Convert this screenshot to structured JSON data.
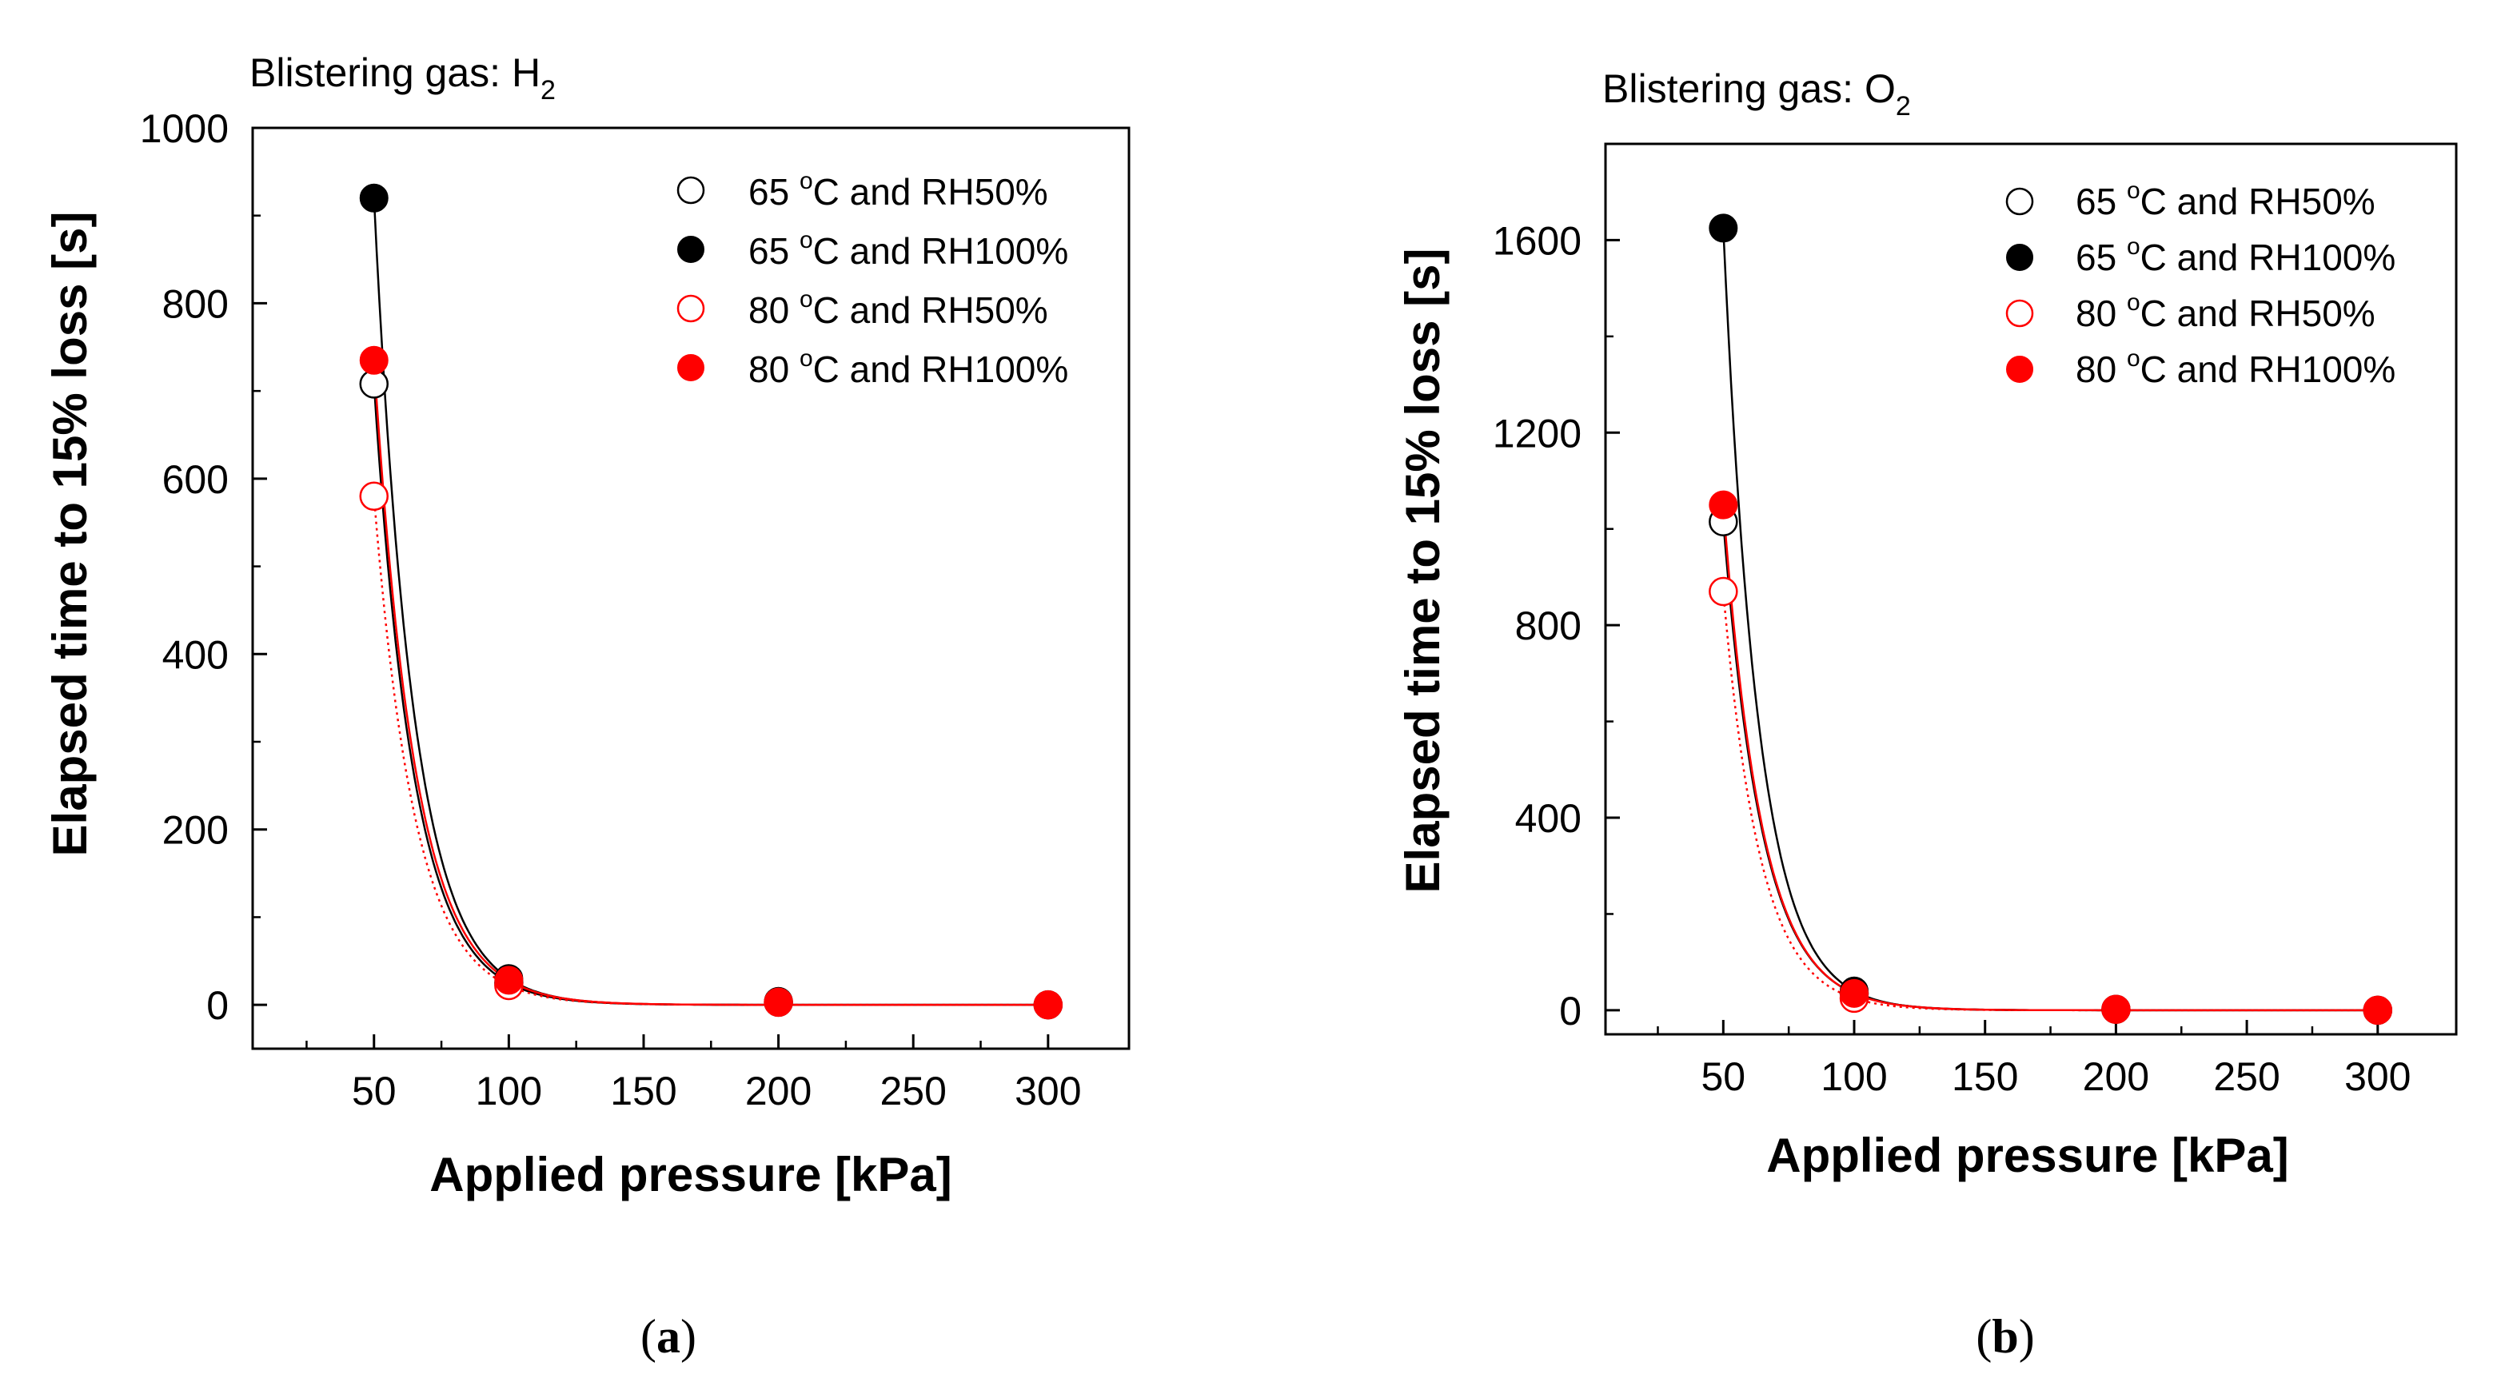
{
  "charts": [
    {
      "type": "scatter",
      "title_prefix": "Blistering gas: ",
      "gas_symbol": "H",
      "gas_subscript": "2",
      "xlabel": "Applied pressure [kPa]",
      "ylabel": "Elapsed time to 15% loss [s]",
      "xlim": [
        5,
        330
      ],
      "ylim": [
        -50,
        1000
      ],
      "xticks": [
        50,
        100,
        150,
        200,
        250,
        300
      ],
      "xtick_labels": [
        "50",
        "100",
        "150",
        "200",
        "250",
        "300"
      ],
      "xminor": [
        25,
        75,
        125,
        175,
        225,
        275
      ],
      "yticks": [
        0,
        200,
        400,
        600,
        800,
        1000
      ],
      "ytick_labels": [
        "0",
        "200",
        "400",
        "600",
        "800",
        "1000"
      ],
      "yminor": [
        100,
        300,
        500,
        700,
        900
      ],
      "caption": "(a)",
      "caption_letter": "a",
      "series": [
        {
          "name": "65 °C and RH50%",
          "legend_prefix": "65 ",
          "legend_deg": "o",
          "legend_suffix": "C and RH50%",
          "color": "#000000",
          "filled": false,
          "line": "solid",
          "x": [
            50,
            100,
            200,
            300
          ],
          "values": [
            708,
            25,
            3,
            0
          ]
        },
        {
          "name": "65 °C and RH100%",
          "legend_prefix": "65 ",
          "legend_deg": "o",
          "legend_suffix": "C and RH100%",
          "color": "#000000",
          "filled": true,
          "line": "solid",
          "x": [
            50,
            100,
            200,
            300
          ],
          "values": [
            920,
            30,
            4,
            0
          ]
        },
        {
          "name": "80 °C and RH50%",
          "legend_prefix": "80 ",
          "legend_deg": "o",
          "legend_suffix": "C and RH50%",
          "color": "#ff0000",
          "filled": false,
          "line": "dotted",
          "x": [
            50,
            100,
            200,
            300
          ],
          "values": [
            580,
            22,
            3,
            0
          ]
        },
        {
          "name": "80 °C and RH100%",
          "legend_prefix": "80 ",
          "legend_deg": "o",
          "legend_suffix": "C and RH100%",
          "color": "#ff0000",
          "filled": true,
          "line": "solid",
          "x": [
            50,
            100,
            200,
            300
          ],
          "values": [
            735,
            28,
            3,
            0
          ]
        }
      ]
    },
    {
      "type": "scatter",
      "title_prefix": "Blistering gas: ",
      "gas_symbol": "O",
      "gas_subscript": "2",
      "xlabel": "Applied pressure [kPa]",
      "ylabel": "Elapsed time to 15% loss [s]",
      "xlim": [
        5,
        330
      ],
      "ylim": [
        -50,
        1800
      ],
      "xticks": [
        50,
        100,
        150,
        200,
        250,
        300
      ],
      "xtick_labels": [
        "50",
        "100",
        "150",
        "200",
        "250",
        "300"
      ],
      "xminor": [
        25,
        75,
        125,
        175,
        225,
        275
      ],
      "yticks": [
        0,
        400,
        800,
        1200,
        1600
      ],
      "ytick_labels": [
        "0",
        "400",
        "800",
        "1200",
        "1600"
      ],
      "yminor": [
        200,
        600,
        1000,
        1400
      ],
      "caption": "(b)",
      "caption_letter": "b",
      "series": [
        {
          "name": "65 °C and RH50%",
          "legend_prefix": "65 ",
          "legend_deg": "o",
          "legend_suffix": "C and RH50%",
          "color": "#000000",
          "filled": false,
          "line": "solid",
          "x": [
            50,
            100,
            200,
            300
          ],
          "values": [
            1015,
            35,
            2,
            0
          ]
        },
        {
          "name": "65 °C and RH100%",
          "legend_prefix": "65 ",
          "legend_deg": "o",
          "legend_suffix": "C and RH100%",
          "color": "#000000",
          "filled": true,
          "line": "solid",
          "x": [
            50,
            100,
            200,
            300
          ],
          "values": [
            1625,
            40,
            2,
            0
          ]
        },
        {
          "name": "80 °C and RH50%",
          "legend_prefix": "80 ",
          "legend_deg": "o",
          "legend_suffix": "C and RH50%",
          "color": "#ff0000",
          "filled": false,
          "line": "dotted",
          "x": [
            50,
            100,
            200,
            300
          ],
          "values": [
            870,
            25,
            2,
            0
          ]
        },
        {
          "name": "80 °C and RH100%",
          "legend_prefix": "80 ",
          "legend_deg": "o",
          "legend_suffix": "C and RH100%",
          "color": "#ff0000",
          "filled": true,
          "line": "solid",
          "x": [
            50,
            100,
            200,
            300
          ],
          "values": [
            1050,
            35,
            2,
            0
          ]
        }
      ]
    }
  ]
}
